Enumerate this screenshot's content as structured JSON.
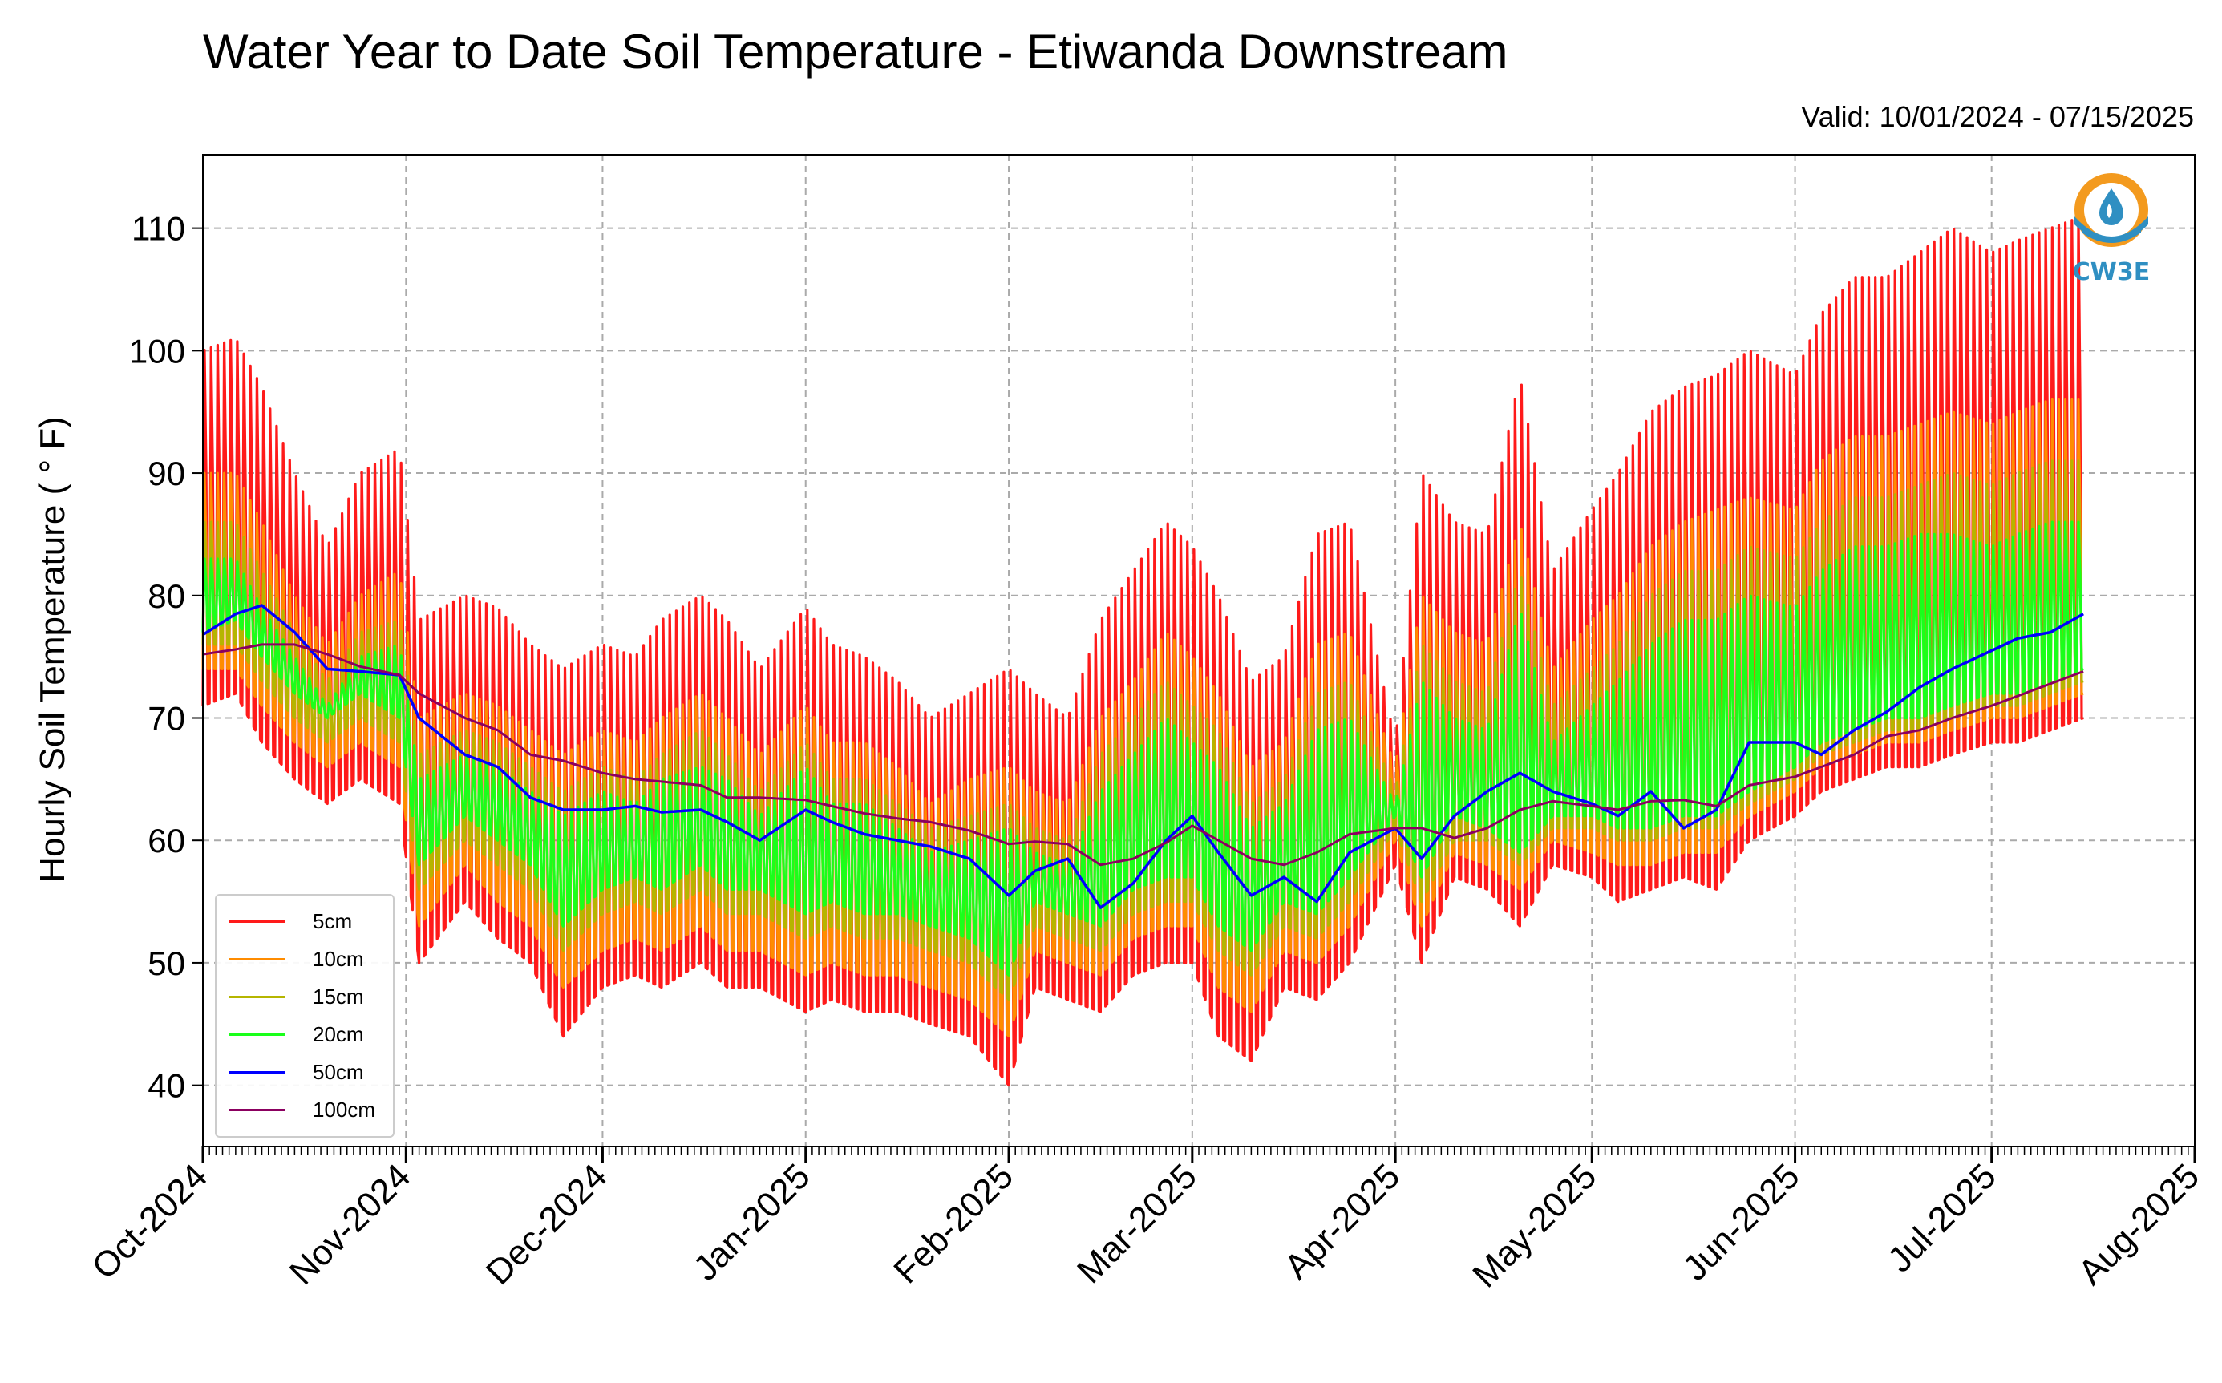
{
  "title": "Water Year to Date Soil Temperature - Etiwanda Downstream",
  "valid": "Valid: 10/01/2024 - 07/15/2025",
  "logo_text": "CW3E",
  "colors": {
    "c5": "#ff1a1a",
    "c10": "#ff8c00",
    "c15": "#b5b500",
    "c20": "#1aff1a",
    "c50": "#0000ff",
    "c100": "#8b0060",
    "logo_orange": "#f39a1e",
    "logo_blue": "#2f8fc2"
  },
  "chart_data": {
    "type": "line",
    "title": "Water Year to Date Soil Temperature - Etiwanda Downstream",
    "ylabel": "Hourly Soil Temperature ( ° F)",
    "ylim": [
      35,
      116
    ],
    "xlim": [
      "2024-10-01",
      "2025-08-01"
    ],
    "yticks": [
      "40",
      "50",
      "60",
      "70",
      "80",
      "90",
      "100",
      "110"
    ],
    "xticks": [
      "Oct-2024",
      "Nov-2024",
      "Dec-2024",
      "Jan-2025",
      "Feb-2025",
      "Mar-2025",
      "Apr-2025",
      "May-2025",
      "Jun-2025",
      "Jul-2025",
      "Aug-2025"
    ],
    "grid": true,
    "legend_position": "lower-left",
    "note": "Lines for 5cm, 10cm, 15cm and 20cm oscillate daily between the min and max envelopes; 50cm and 100cm lines are smooth.",
    "x": [
      "2024-10-01",
      "2024-10-06",
      "2024-10-10",
      "2024-10-15",
      "2024-10-20",
      "2024-10-25",
      "2024-10-31",
      "2024-11-03",
      "2024-11-10",
      "2024-11-15",
      "2024-11-20",
      "2024-11-25",
      "2024-12-01",
      "2024-12-06",
      "2024-12-10",
      "2024-12-16",
      "2024-12-20",
      "2024-12-25",
      "2025-01-01",
      "2025-01-05",
      "2025-01-10",
      "2025-01-15",
      "2025-01-20",
      "2025-01-26",
      "2025-02-01",
      "2025-02-05",
      "2025-02-10",
      "2025-02-15",
      "2025-02-20",
      "2025-02-25",
      "2025-03-01",
      "2025-03-05",
      "2025-03-10",
      "2025-03-15",
      "2025-03-20",
      "2025-03-25",
      "2025-04-01",
      "2025-04-05",
      "2025-04-10",
      "2025-04-15",
      "2025-04-20",
      "2025-04-25",
      "2025-05-01",
      "2025-05-05",
      "2025-05-10",
      "2025-05-15",
      "2025-05-20",
      "2025-05-25",
      "2025-06-01",
      "2025-06-05",
      "2025-06-10",
      "2025-06-15",
      "2025-06-20",
      "2025-06-25",
      "2025-07-01",
      "2025-07-05",
      "2025-07-10",
      "2025-07-15"
    ],
    "series": [
      {
        "name": "5cm",
        "min": [
          71,
          72,
          68,
          65,
          63,
          65,
          63,
          50,
          55,
          52,
          50,
          44,
          48,
          49,
          48,
          50,
          48,
          48,
          46,
          47,
          46,
          46,
          45,
          44,
          40,
          48,
          47,
          46,
          49,
          50,
          50,
          44,
          42,
          48,
          47,
          50,
          58,
          50,
          57,
          56,
          53,
          58,
          57,
          55,
          56,
          57,
          56,
          60,
          62,
          64,
          65,
          66,
          66,
          67,
          68,
          68,
          69,
          70
        ],
        "max": [
          100,
          101,
          97,
          90,
          84,
          90,
          92,
          78,
          80,
          79,
          76,
          74,
          76,
          75,
          78,
          80,
          78,
          74,
          79,
          76,
          75,
          73,
          70,
          72,
          74,
          72,
          70,
          78,
          82,
          86,
          84,
          80,
          73,
          75,
          85,
          86,
          68,
          90,
          86,
          85,
          98,
          82,
          87,
          90,
          95,
          97,
          98,
          100,
          98,
          103,
          106,
          106,
          108,
          110,
          108,
          109,
          110,
          111
        ]
      },
      {
        "name": "10cm",
        "min": [
          74,
          74,
          71,
          68,
          66,
          68,
          66,
          53,
          58,
          55,
          53,
          48,
          51,
          52,
          51,
          53,
          51,
          51,
          49,
          50,
          49,
          49,
          48,
          47,
          44,
          51,
          50,
          49,
          52,
          53,
          53,
          48,
          46,
          51,
          50,
          53,
          60,
          53,
          59,
          58,
          56,
          60,
          59,
          58,
          58,
          59,
          59,
          62,
          64,
          66,
          67,
          68,
          68,
          69,
          70,
          70,
          71,
          72
        ],
        "max": [
          90,
          90,
          86,
          80,
          76,
          80,
          82,
          70,
          72,
          71,
          69,
          67,
          69,
          68,
          70,
          72,
          70,
          67,
          71,
          68,
          68,
          66,
          63,
          65,
          66,
          64,
          63,
          70,
          73,
          77,
          75,
          72,
          66,
          68,
          76,
          77,
          66,
          80,
          77,
          76,
          86,
          74,
          78,
          80,
          84,
          86,
          87,
          88,
          87,
          91,
          93,
          93,
          94,
          95,
          94,
          95,
          96,
          96
        ]
      },
      {
        "name": "15cm",
        "min": [
          76,
          76,
          73,
          70,
          68,
          70,
          68,
          56,
          60,
          58,
          56,
          51,
          54,
          55,
          54,
          56,
          54,
          54,
          52,
          53,
          52,
          52,
          51,
          50,
          47,
          53,
          52,
          51,
          54,
          55,
          55,
          51,
          49,
          53,
          52,
          55,
          61,
          55,
          60,
          60,
          58,
          61,
          61,
          60,
          60,
          61,
          61,
          63,
          65,
          67,
          68,
          69,
          69,
          70,
          71,
          71,
          72,
          73
        ],
        "max": [
          86,
          86,
          82,
          77,
          73,
          77,
          78,
          67,
          69,
          68,
          66,
          64,
          66,
          65,
          67,
          69,
          67,
          64,
          68,
          65,
          65,
          63,
          61,
          62,
          63,
          61,
          60,
          67,
          70,
          73,
          71,
          69,
          63,
          65,
          72,
          73,
          64,
          76,
          73,
          72,
          82,
          71,
          74,
          76,
          80,
          82,
          82,
          84,
          83,
          86,
          88,
          88,
          89,
          90,
          89,
          90,
          91,
          91
        ]
      },
      {
        "name": "20cm",
        "min": [
          77,
          78,
          75,
          72,
          70,
          72,
          70,
          58,
          62,
          60,
          58,
          53,
          56,
          57,
          56,
          58,
          56,
          56,
          54,
          55,
          54,
          54,
          53,
          52,
          49,
          55,
          54,
          53,
          56,
          57,
          57,
          53,
          51,
          55,
          54,
          57,
          62,
          57,
          62,
          61,
          59,
          62,
          62,
          61,
          61,
          62,
          62,
          64,
          66,
          68,
          69,
          70,
          70,
          71,
          72,
          72,
          73,
          74
        ],
        "max": [
          83,
          83,
          79,
          75,
          71,
          75,
          76,
          65,
          67,
          66,
          64,
          62,
          64,
          63,
          65,
          66,
          65,
          62,
          66,
          63,
          63,
          61,
          59,
          60,
          61,
          59,
          58,
          64,
          67,
          70,
          68,
          66,
          61,
          63,
          69,
          70,
          63,
          73,
          70,
          69,
          79,
          68,
          71,
          73,
          76,
          78,
          78,
          80,
          79,
          82,
          84,
          84,
          85,
          85,
          84,
          85,
          86,
          86
        ]
      },
      {
        "name": "50cm",
        "values": [
          76.8,
          78.5,
          79.2,
          77,
          74,
          73.8,
          73.5,
          70,
          67,
          66,
          63.5,
          62.5,
          62.5,
          62.8,
          62.3,
          62.5,
          61.5,
          60,
          62.5,
          61.5,
          60.5,
          60,
          59.5,
          58.5,
          55.5,
          57.5,
          58.5,
          54.5,
          56.5,
          60,
          62,
          59,
          55.5,
          57,
          55,
          59,
          61,
          58.5,
          62,
          64,
          65.5,
          64,
          63,
          62,
          64,
          61,
          62.5,
          68,
          68,
          67,
          69,
          70.5,
          72.5,
          74,
          75.5,
          76.5,
          77,
          78.5
        ]
      },
      {
        "name": "100cm",
        "values": [
          75.2,
          75.6,
          76,
          76,
          75.2,
          74.2,
          73.5,
          72,
          70,
          69,
          67,
          66.5,
          65.5,
          65,
          64.8,
          64.5,
          63.5,
          63.5,
          63.3,
          62.8,
          62.2,
          61.8,
          61.5,
          60.8,
          59.7,
          59.9,
          59.7,
          58,
          58.5,
          59.8,
          61.2,
          60,
          58.5,
          58,
          59,
          60.5,
          61,
          61,
          60.2,
          61,
          62.5,
          63.2,
          62.8,
          62.5,
          63.2,
          63.3,
          62.8,
          64.5,
          65.2,
          66,
          67,
          68.5,
          69,
          70,
          71,
          71.8,
          72.8,
          73.8
        ]
      }
    ]
  }
}
